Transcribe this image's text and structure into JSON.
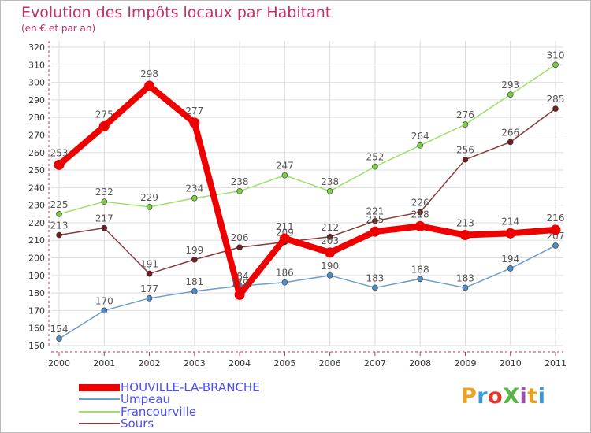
{
  "header": {
    "title": "Evolution des Impôts locaux par Habitant",
    "subtitle": "(en € et par an)"
  },
  "logo": {
    "text": "ProXiti",
    "colors": [
      "#f0a020",
      "#3a9ad9",
      "#e8382a",
      "#58b447",
      "#9a4fb0",
      "#e8a020",
      "#3a9ad9"
    ]
  },
  "chart_data": {
    "type": "line",
    "x": [
      "2000",
      "2001",
      "2002",
      "2003",
      "2004",
      "2005",
      "2006",
      "2007",
      "2008",
      "2009",
      "2010",
      "2011"
    ],
    "ylim": [
      150,
      320
    ],
    "yticks": [
      150,
      160,
      170,
      180,
      190,
      200,
      210,
      220,
      230,
      240,
      250,
      260,
      270,
      280,
      290,
      300,
      310,
      320
    ],
    "grid": true,
    "legend_position": "bottom-left",
    "series": [
      {
        "name": "Umpeau",
        "color": "#6a9fd0",
        "marker_color": "#4f8dc8",
        "label_color": "#555555",
        "values": [
          154,
          170,
          177,
          181,
          184,
          186,
          190,
          183,
          188,
          183,
          194,
          207
        ]
      },
      {
        "name": "Francourville",
        "color": "#9fdf6a",
        "marker_color": "#7ccc44",
        "label_color": "#555555",
        "values": [
          225,
          232,
          229,
          234,
          238,
          247,
          238,
          252,
          264,
          276,
          293,
          310
        ]
      },
      {
        "name": "Sours",
        "color": "#8b3a3a",
        "marker_color": "#6e1f1f",
        "label_color": "#555555",
        "values": [
          213,
          217,
          191,
          199,
          206,
          209,
          212,
          221,
          226,
          256,
          266,
          285
        ]
      },
      {
        "name": "HOUVILLE-LA-BRANCHE",
        "color": "#ee0000",
        "marker_color": "#ee0000",
        "label_color": "#555555",
        "values": [
          253,
          275,
          298,
          277,
          179,
          211,
          203,
          215,
          218,
          213,
          214,
          216
        ]
      }
    ],
    "legend_order": [
      "HOUVILLE-LA-BRANCHE",
      "Umpeau",
      "Francourville",
      "Sours"
    ]
  }
}
